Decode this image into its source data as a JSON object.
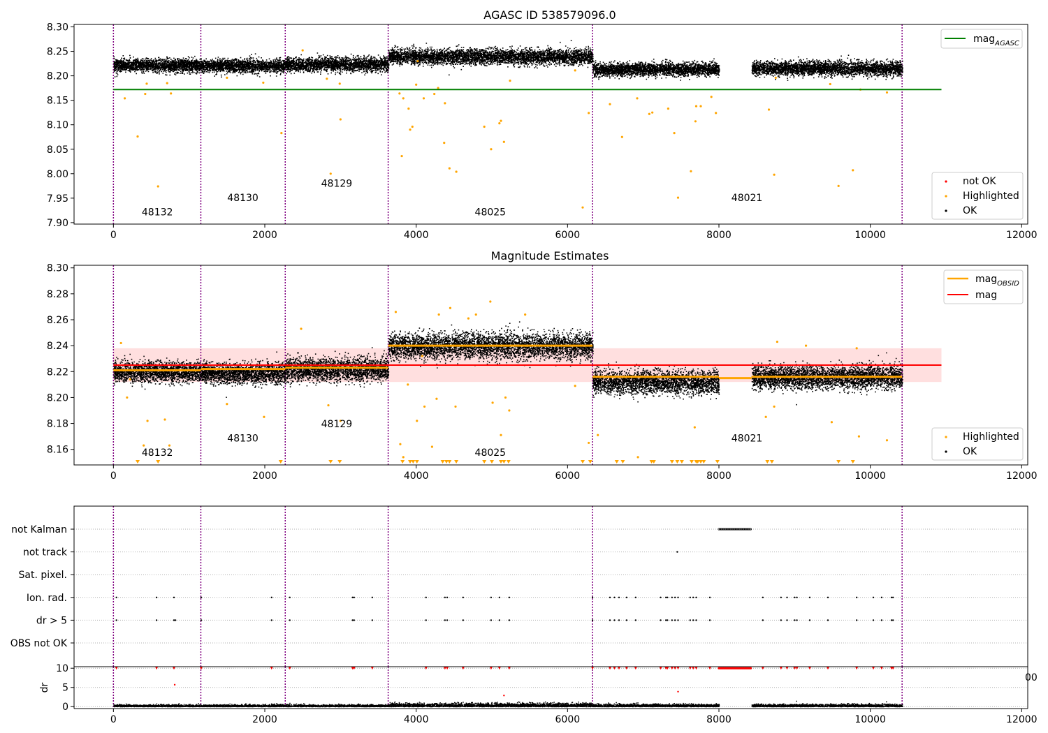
{
  "chart_data": [
    {
      "id": "agasc",
      "type": "scatter",
      "title": "AGASC ID 538579096.0",
      "xlim": [
        -520,
        12080
      ],
      "ylim": [
        7.897,
        8.305
      ],
      "xticks": [
        0,
        2000,
        4000,
        6000,
        8000,
        10000,
        12000
      ],
      "xtick_labels": [
        "0",
        "2000",
        "4000",
        "6000",
        "8000",
        "10000",
        "12000"
      ],
      "yticks": [
        7.9,
        7.95,
        8.0,
        8.05,
        8.1,
        8.15,
        8.2,
        8.25,
        8.3
      ],
      "ytick_labels": [
        "7.90",
        "7.95",
        "8.00",
        "8.05",
        "8.10",
        "8.15",
        "8.20",
        "8.25",
        "8.30"
      ],
      "obs_boundaries": [
        0,
        1155,
        2270,
        3630,
        6330,
        10420
      ],
      "obs_labels": [
        {
          "label": "48132",
          "x": 580,
          "y": 7.915
        },
        {
          "label": "48130",
          "x": 1710,
          "y": 7.944
        },
        {
          "label": "48129",
          "x": 2950,
          "y": 7.973
        },
        {
          "label": "48025",
          "x": 4980,
          "y": 7.915
        },
        {
          "label": "48021",
          "x": 8370,
          "y": 7.944
        }
      ],
      "ok_segments": [
        {
          "x_start": 0,
          "x_end": 1155,
          "mean": 8.222,
          "spread": 0.012
        },
        {
          "x_start": 1155,
          "x_end": 2270,
          "mean": 8.221,
          "spread": 0.012
        },
        {
          "x_start": 2270,
          "x_end": 3630,
          "mean": 8.224,
          "spread": 0.013
        },
        {
          "x_start": 3630,
          "x_end": 6330,
          "mean": 8.24,
          "spread": 0.014
        },
        {
          "x_start": 6330,
          "x_end": 8000,
          "mean": 8.214,
          "spread": 0.012
        },
        {
          "x_start": 8430,
          "x_end": 10420,
          "mean": 8.216,
          "spread": 0.013
        }
      ],
      "highlighted_points": [
        [
          150,
          8.154
        ],
        [
          320,
          8.076
        ],
        [
          420,
          8.163
        ],
        [
          440,
          8.184
        ],
        [
          590,
          7.974
        ],
        [
          710,
          8.185
        ],
        [
          760,
          8.164
        ],
        [
          1500,
          8.196
        ],
        [
          1980,
          8.186
        ],
        [
          2220,
          8.083
        ],
        [
          2500,
          8.252
        ],
        [
          2820,
          8.194
        ],
        [
          2870,
          8.0
        ],
        [
          2990,
          8.184
        ],
        [
          3000,
          8.111
        ],
        [
          3780,
          8.164
        ],
        [
          3810,
          8.036
        ],
        [
          3830,
          8.154
        ],
        [
          3900,
          8.133
        ],
        [
          3920,
          8.09
        ],
        [
          3950,
          8.096
        ],
        [
          4000,
          8.182
        ],
        [
          4020,
          8.23
        ],
        [
          4100,
          8.154
        ],
        [
          4240,
          8.163
        ],
        [
          4290,
          8.175
        ],
        [
          4370,
          8.063
        ],
        [
          4380,
          8.144
        ],
        [
          4440,
          8.011
        ],
        [
          4530,
          8.004
        ],
        [
          4900,
          8.096
        ],
        [
          4990,
          8.05
        ],
        [
          5100,
          8.103
        ],
        [
          5120,
          8.108
        ],
        [
          5160,
          8.065
        ],
        [
          5240,
          8.19
        ],
        [
          6100,
          8.211
        ],
        [
          6200,
          7.931
        ],
        [
          6280,
          8.124
        ],
        [
          6560,
          8.142
        ],
        [
          6720,
          8.075
        ],
        [
          6920,
          8.154
        ],
        [
          7080,
          8.122
        ],
        [
          7120,
          8.125
        ],
        [
          7330,
          8.133
        ],
        [
          7410,
          8.083
        ],
        [
          7460,
          7.951
        ],
        [
          7630,
          8.005
        ],
        [
          7690,
          8.107
        ],
        [
          7700,
          8.138
        ],
        [
          7760,
          8.138
        ],
        [
          7900,
          8.157
        ],
        [
          7960,
          8.124
        ],
        [
          8660,
          8.131
        ],
        [
          8730,
          7.998
        ],
        [
          8750,
          8.196
        ],
        [
          9580,
          7.975
        ],
        [
          9770,
          8.007
        ],
        [
          9470,
          8.183
        ],
        [
          10220,
          8.166
        ],
        [
          9870,
          8.172
        ]
      ],
      "reference_line": {
        "label": "mag$_{AGASC}$",
        "value": 8.172,
        "x_start": 0,
        "x_end": 10940,
        "color": "#008000"
      },
      "legend_upper": {
        "entries": [
          {
            "text": "mag",
            "sub": "AGASC",
            "color": "#008000"
          }
        ],
        "position": "top-right"
      },
      "legend_lower": {
        "entries": [
          {
            "text": "not OK",
            "color": "#ff0000"
          },
          {
            "text": "Highlighted",
            "color": "#ffa500"
          },
          {
            "text": "OK",
            "color": "#000000"
          }
        ],
        "position": "bottom-right"
      },
      "series": [
        {
          "name": "not OK",
          "color": "#ff0000"
        },
        {
          "name": "Highlighted",
          "color": "#ffa500"
        },
        {
          "name": "OK",
          "color": "#000000"
        }
      ]
    },
    {
      "id": "estimates",
      "type": "scatter",
      "title": "Magnitude Estimates",
      "xlim": [
        -520,
        12080
      ],
      "ylim": [
        8.148,
        8.302
      ],
      "xticks": [
        0,
        2000,
        4000,
        6000,
        8000,
        10000,
        12000
      ],
      "xtick_labels": [
        "0",
        "2000",
        "4000",
        "6000",
        "8000",
        "10000",
        "12000"
      ],
      "yticks": [
        8.16,
        8.18,
        8.2,
        8.22,
        8.24,
        8.26,
        8.28,
        8.3
      ],
      "ytick_labels": [
        "8.16",
        "8.18",
        "8.20",
        "8.22",
        "8.24",
        "8.26",
        "8.28",
        "8.30"
      ],
      "obs_boundaries": [
        0,
        1155,
        2270,
        3630,
        6330,
        10420
      ],
      "obs_labels": [
        {
          "label": "48132",
          "x": 580,
          "y": 8.155
        },
        {
          "label": "48130",
          "x": 1710,
          "y": 8.166
        },
        {
          "label": "48129",
          "x": 2950,
          "y": 8.177
        },
        {
          "label": "48025",
          "x": 4980,
          "y": 8.155
        },
        {
          "label": "48021",
          "x": 8370,
          "y": 8.166
        }
      ],
      "ok_segments": [
        {
          "x_start": 0,
          "x_end": 1155,
          "mean": 8.22,
          "spread": 0.007
        },
        {
          "x_start": 1155,
          "x_end": 2270,
          "mean": 8.219,
          "spread": 0.007
        },
        {
          "x_start": 2270,
          "x_end": 3630,
          "mean": 8.222,
          "spread": 0.008
        },
        {
          "x_start": 3630,
          "x_end": 6330,
          "mean": 8.24,
          "spread": 0.009
        },
        {
          "x_start": 6330,
          "x_end": 8000,
          "mean": 8.212,
          "spread": 0.008
        },
        {
          "x_start": 8430,
          "x_end": 10420,
          "mean": 8.216,
          "spread": 0.008
        }
      ],
      "highlighted_points": [
        [
          100,
          8.242
        ],
        [
          180,
          8.2
        ],
        [
          220,
          8.214
        ],
        [
          450,
          8.182
        ],
        [
          400,
          8.163
        ],
        [
          680,
          8.183
        ],
        [
          740,
          8.163
        ],
        [
          1500,
          8.195
        ],
        [
          1990,
          8.185
        ],
        [
          2480,
          8.253
        ],
        [
          2840,
          8.194
        ],
        [
          3000,
          8.182
        ],
        [
          3730,
          8.266
        ],
        [
          3790,
          8.164
        ],
        [
          3830,
          8.154
        ],
        [
          3890,
          8.21
        ],
        [
          4010,
          8.182
        ],
        [
          4080,
          8.232
        ],
        [
          4110,
          8.193
        ],
        [
          4210,
          8.162
        ],
        [
          4270,
          8.199
        ],
        [
          4300,
          8.264
        ],
        [
          4450,
          8.269
        ],
        [
          4520,
          8.193
        ],
        [
          4690,
          8.261
        ],
        [
          4790,
          8.264
        ],
        [
          4980,
          8.274
        ],
        [
          5010,
          8.196
        ],
        [
          5120,
          8.171
        ],
        [
          5180,
          8.2
        ],
        [
          5230,
          8.19
        ],
        [
          5440,
          8.264
        ],
        [
          6100,
          8.209
        ],
        [
          6280,
          8.165
        ],
        [
          6400,
          8.171
        ],
        [
          6930,
          8.154
        ],
        [
          7680,
          8.177
        ],
        [
          8620,
          8.185
        ],
        [
          8730,
          8.193
        ],
        [
          8770,
          8.243
        ],
        [
          9150,
          8.24
        ],
        [
          9490,
          8.181
        ],
        [
          9820,
          8.238
        ],
        [
          9850,
          8.17
        ],
        [
          10220,
          8.167
        ]
      ],
      "offscale_markers_x": [
        320,
        590,
        2210,
        2990,
        2870,
        3820,
        3920,
        3960,
        4010,
        4350,
        4400,
        4440,
        4530,
        4900,
        5000,
        5120,
        5160,
        5220,
        6200,
        6300,
        6650,
        6730,
        7110,
        7140,
        7380,
        7450,
        7510,
        7640,
        7700,
        7720,
        7760,
        7800,
        7980,
        8640,
        8700,
        9580,
        9770
      ],
      "mag_obsid_segments": [
        {
          "x_start": 0,
          "x_end": 1155,
          "value": 8.221
        },
        {
          "x_start": 1155,
          "x_end": 2270,
          "value": 8.222
        },
        {
          "x_start": 2270,
          "x_end": 3630,
          "value": 8.223
        },
        {
          "x_start": 3630,
          "x_end": 6330,
          "value": 8.24
        },
        {
          "x_start": 6330,
          "x_end": 8000,
          "value": 8.216
        },
        {
          "x_start": 8000,
          "x_end": 8430,
          "value": 8.215
        },
        {
          "x_start": 8430,
          "x_end": 10420,
          "value": 8.216
        }
      ],
      "mag_line": {
        "value": 8.225,
        "band_low": 8.212,
        "band_high": 8.238,
        "x_start": 0,
        "x_end": 10940,
        "color": "#ff0000"
      },
      "legend_upper": {
        "entries": [
          {
            "text": "mag",
            "sub": "OBSID",
            "color": "#ffa500"
          },
          {
            "text": "mag",
            "sub": "",
            "color": "#ff0000"
          }
        ],
        "position": "top-right"
      },
      "legend_lower": {
        "entries": [
          {
            "text": "Highlighted",
            "color": "#ffa500"
          },
          {
            "text": "OK",
            "color": "#000000"
          }
        ],
        "position": "bottom-right"
      },
      "series": [
        {
          "name": "Highlighted",
          "color": "#ffa500"
        },
        {
          "name": "OK",
          "color": "#000000"
        }
      ]
    },
    {
      "id": "flags",
      "type": "scatter",
      "xlim": [
        -520,
        12080
      ],
      "categories": [
        "not Kalman",
        "not track",
        "Sat. pixel.",
        "Ion. rad.",
        "dr > 5",
        "OBS not OK"
      ],
      "obs_boundaries": [
        0,
        1155,
        2270,
        3630,
        6330,
        10420
      ],
      "not_kalman_range": [
        8000,
        8430
      ],
      "not_track_x": [
        7450
      ],
      "ion_rad_x": [
        40,
        570,
        800,
        1160,
        2090,
        2330,
        3160,
        3180,
        3420,
        4130,
        4380,
        4410,
        4620,
        4990,
        5100,
        5230,
        6330,
        6560,
        6620,
        6680,
        6780,
        6900,
        7230,
        7300,
        7320,
        7380,
        7420,
        7460,
        7620,
        7660,
        7700,
        7880,
        8580,
        8820,
        8900,
        9000,
        9030,
        9200,
        9440,
        9820,
        10040,
        10150,
        10280,
        10300
      ],
      "dr5_x": [
        40,
        570,
        800,
        820,
        1160,
        2090,
        2330,
        3160,
        3180,
        3420,
        4130,
        4380,
        4410,
        4620,
        4990,
        5100,
        5230,
        6330,
        6560,
        6620,
        6680,
        6780,
        6900,
        7230,
        7300,
        7320,
        7380,
        7420,
        7460,
        7620,
        7660,
        7700,
        7880,
        8580,
        8820,
        8900,
        9000,
        9030,
        9200,
        9440,
        9820,
        10040,
        10150,
        10280,
        10300
      ]
    },
    {
      "id": "dr",
      "type": "scatter",
      "ylabel": "dr",
      "xlim": [
        -520,
        12080
      ],
      "ylim": [
        -0.5,
        10.4
      ],
      "xticks": [
        0,
        2000,
        4000,
        6000,
        8000,
        10000,
        12000
      ],
      "xtick_labels": [
        "0",
        "2000",
        "4000",
        "6000",
        "8000",
        "10000",
        "12000"
      ],
      "yticks": [
        0,
        5,
        10
      ],
      "ytick_labels": [
        "0",
        "5",
        "10"
      ],
      "obs_boundaries": [
        0,
        1155,
        2270,
        3630,
        6330,
        10420
      ],
      "overflow_text": "00",
      "capped_red_x": [
        40,
        570,
        800,
        1160,
        2090,
        2330,
        3160,
        3180,
        3420,
        4130,
        4380,
        4410,
        4620,
        4990,
        5100,
        5230,
        6330,
        6560,
        6620,
        6680,
        6780,
        6900,
        7230,
        7300,
        7320,
        7380,
        7420,
        7460,
        7620,
        7660,
        7700,
        7880,
        8580,
        8820,
        8900,
        9000,
        9030,
        9200,
        9440,
        9820,
        10040,
        10150,
        10280,
        10300
      ],
      "capped_red_range": [
        8000,
        8430
      ],
      "scattered_red_points": [
        [
          810,
          5.7
        ],
        [
          7460,
          3.9
        ],
        [
          5160,
          2.9
        ]
      ],
      "baseline_segments": [
        [
          0,
          3630,
          0.4
        ],
        [
          3630,
          6330,
          0.7
        ],
        [
          6330,
          8000,
          0.5
        ],
        [
          8430,
          10420,
          0.5
        ]
      ]
    }
  ]
}
